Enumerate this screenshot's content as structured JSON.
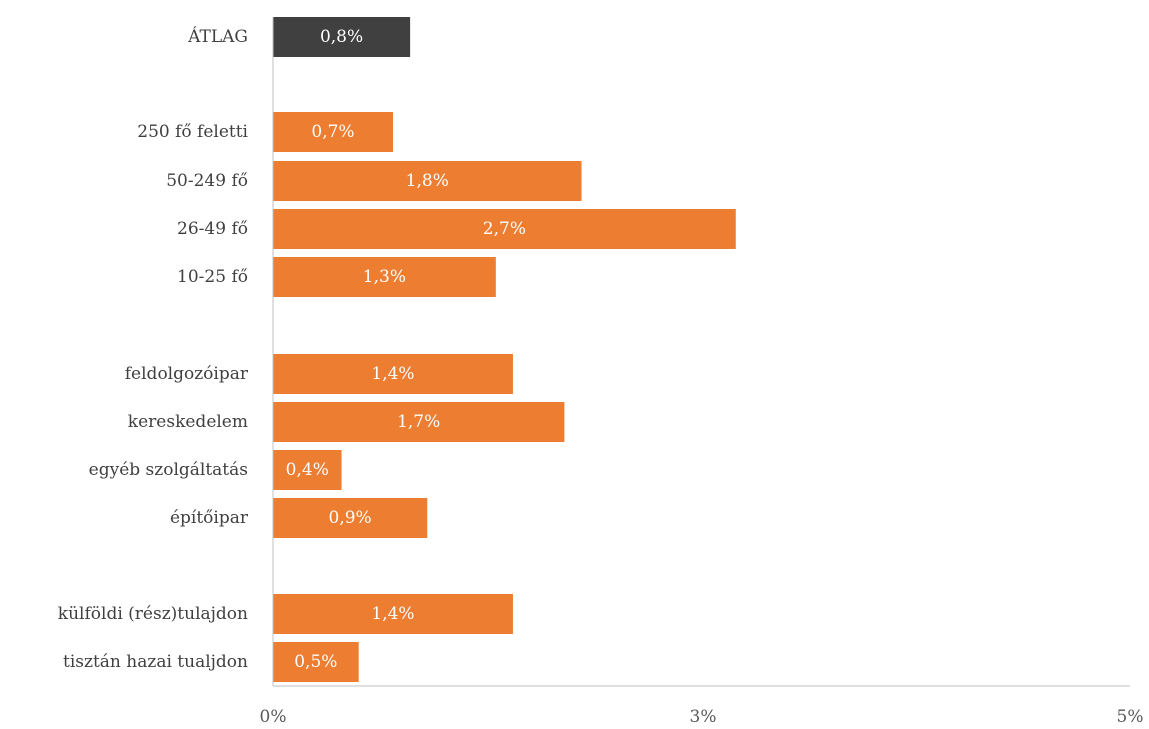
{
  "chart_data": {
    "type": "bar",
    "orientation": "horizontal",
    "categories": [
      "ÁTLAG",
      "250 fő feletti",
      "50-249 fő",
      "26-49 fő",
      "10-25 fő",
      "feldolgozóipar",
      "kereskedelem",
      "egyéb szolgáltatás",
      "építőipar",
      "külföldi (rész)tulajdon",
      "tisztán hazai tualjdon"
    ],
    "values": [
      0.8,
      0.7,
      1.8,
      2.7,
      1.3,
      1.4,
      1.7,
      0.4,
      0.9,
      1.4,
      0.5
    ],
    "value_labels": [
      "0,8%",
      "0,7%",
      "1,8%",
      "2,7%",
      "1,3%",
      "1,4%",
      "1,7%",
      "0,4%",
      "0,9%",
      "1,4%",
      "0,5%"
    ],
    "highlight_index": 0,
    "xlim": [
      0,
      5
    ],
    "x_ticks": [
      0,
      3,
      5
    ],
    "x_tick_labels": [
      "0%",
      "3%",
      "5%"
    ],
    "grid": false,
    "colors": {
      "highlight": "#404040",
      "bar": "#ed7d31",
      "axis": "#bfbfbf"
    }
  }
}
